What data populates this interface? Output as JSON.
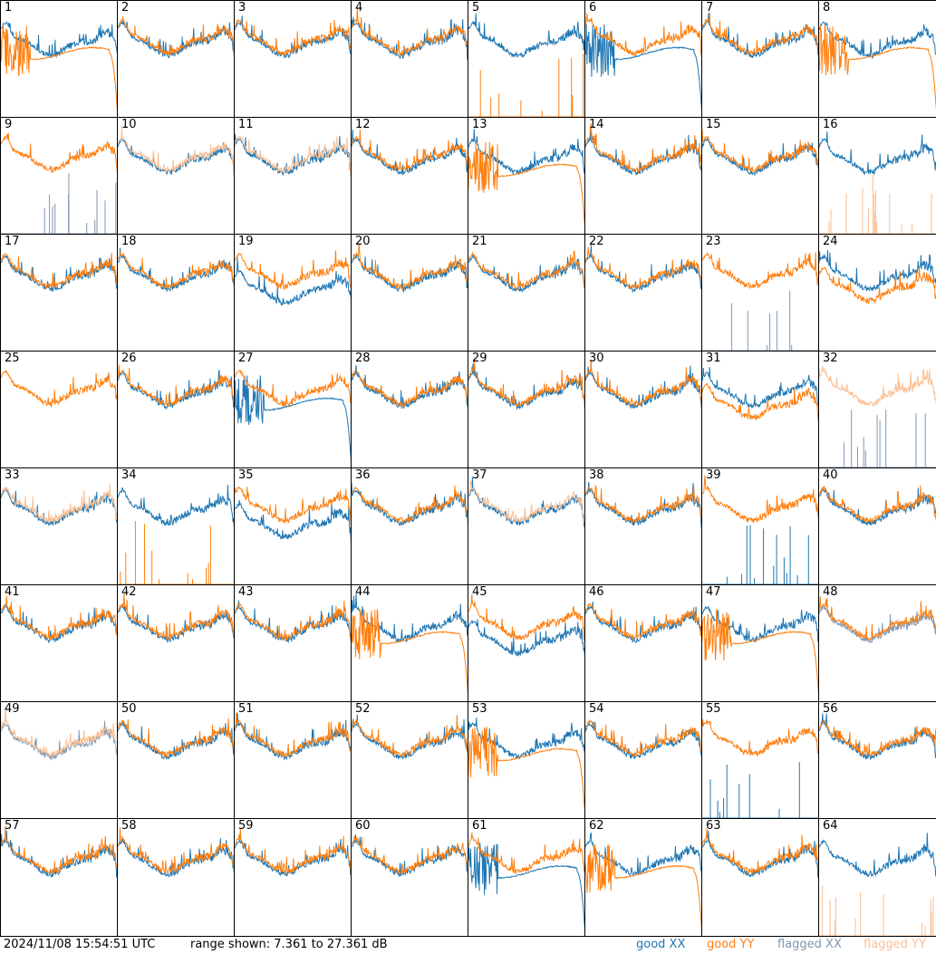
{
  "footer": {
    "timestamp": "2024/11/08 15:54:51 UTC",
    "range": "range shown: 7.361 to 27.361 dB"
  },
  "legend": [
    {
      "id": "good-xx",
      "label_a": "good ",
      "label_b": "XX",
      "color": "#1f77b4"
    },
    {
      "id": "good-yy",
      "label_a": "good ",
      "label_b": "YY",
      "color": "#ff7f0e"
    },
    {
      "id": "flagged-xx",
      "label_a": "flagged ",
      "label_b": "XX",
      "color": "#7f98b2"
    },
    {
      "id": "flagged-yy",
      "label_a": "flagged ",
      "label_b": "YY",
      "color": "#f9bf93"
    }
  ],
  "colors": {
    "good_xx": "#1f77b4",
    "good_yy": "#ff7f0e",
    "flagged_xx": "#7f98b2",
    "flagged_yy": "#f9bf93"
  },
  "chart_data": {
    "type": "line",
    "units": "dB",
    "ylim": [
      7.361,
      27.361
    ],
    "grid": false,
    "layout": "8x8 small multiples",
    "series_names": [
      "good XX",
      "good YY",
      "flagged XX",
      "flagged YY"
    ],
    "panels": [
      {
        "label": "1",
        "xx": "normal",
        "yy": "plateau",
        "yy_state": "good",
        "xx_state": "good"
      },
      {
        "label": "2",
        "xx": "normal",
        "yy": "normal"
      },
      {
        "label": "3",
        "xx": "normal",
        "yy": "normal"
      },
      {
        "label": "4",
        "xx": "normal",
        "yy": "normal"
      },
      {
        "label": "5",
        "xx": "normal",
        "yy": "spikes"
      },
      {
        "label": "6",
        "xx": "plateau",
        "yy": "normal"
      },
      {
        "label": "7",
        "xx": "normal",
        "yy": "normal"
      },
      {
        "label": "8",
        "xx": "normal",
        "yy": "plateau"
      },
      {
        "label": "9",
        "xx": "spikes",
        "yy": "normal",
        "xx_state": "flagged"
      },
      {
        "label": "10",
        "xx": "normal",
        "yy": "normal",
        "yy_state": "flagged"
      },
      {
        "label": "11",
        "xx": "normal",
        "yy": "normal",
        "yy_state": "flagged"
      },
      {
        "label": "12",
        "xx": "normal",
        "yy": "normal"
      },
      {
        "label": "13",
        "xx": "normal",
        "yy": "plateau"
      },
      {
        "label": "14",
        "xx": "normal",
        "yy": "normal"
      },
      {
        "label": "15",
        "xx": "normal",
        "yy": "normal"
      },
      {
        "label": "16",
        "xx": "normal",
        "yy": "spikes",
        "yy_state": "flagged"
      },
      {
        "label": "17",
        "xx": "normal",
        "yy": "normal"
      },
      {
        "label": "18",
        "xx": "normal",
        "yy": "normal"
      },
      {
        "label": "19",
        "xx": "low",
        "yy": "normal"
      },
      {
        "label": "20",
        "xx": "normal",
        "yy": "normal"
      },
      {
        "label": "21",
        "xx": "normal",
        "yy": "normal"
      },
      {
        "label": "22",
        "xx": "normal",
        "yy": "normal"
      },
      {
        "label": "23",
        "xx": "spikes",
        "yy": "normal",
        "xx_state": "flagged"
      },
      {
        "label": "24",
        "xx": "normal",
        "yy": "low"
      },
      {
        "label": "25",
        "xx": "none",
        "yy": "normal"
      },
      {
        "label": "26",
        "xx": "normal",
        "yy": "normal"
      },
      {
        "label": "27",
        "xx": "plateau",
        "yy": "normal"
      },
      {
        "label": "28",
        "xx": "normal",
        "yy": "normal"
      },
      {
        "label": "29",
        "xx": "normal",
        "yy": "normal"
      },
      {
        "label": "30",
        "xx": "normal",
        "yy": "normal"
      },
      {
        "label": "31",
        "xx": "normal",
        "yy": "low"
      },
      {
        "label": "32",
        "xx": "spikes",
        "yy": "normal",
        "yy_state": "flagged",
        "xx_state": "flagged"
      },
      {
        "label": "33",
        "xx": "normal",
        "yy": "normal",
        "yy_state": "flagged"
      },
      {
        "label": "34",
        "xx": "normal",
        "yy": "spikes"
      },
      {
        "label": "35",
        "xx": "low",
        "yy": "normal"
      },
      {
        "label": "36",
        "xx": "normal",
        "yy": "normal"
      },
      {
        "label": "37",
        "xx": "normal",
        "yy": "normal",
        "yy_state": "flagged"
      },
      {
        "label": "38",
        "xx": "normal",
        "yy": "normal"
      },
      {
        "label": "39",
        "xx": "spikes",
        "yy": "normal"
      },
      {
        "label": "40",
        "xx": "normal",
        "yy": "normal"
      },
      {
        "label": "41",
        "xx": "normal",
        "yy": "normal"
      },
      {
        "label": "42",
        "xx": "normal",
        "yy": "normal"
      },
      {
        "label": "43",
        "xx": "normal",
        "yy": "normal"
      },
      {
        "label": "44",
        "xx": "normal",
        "yy": "plateau"
      },
      {
        "label": "45",
        "xx": "low",
        "yy": "normal"
      },
      {
        "label": "46",
        "xx": "normal",
        "yy": "normal"
      },
      {
        "label": "47",
        "xx": "normal",
        "yy": "plateau"
      },
      {
        "label": "48",
        "xx": "normal",
        "yy": "normal",
        "xx_state": "flagged"
      },
      {
        "label": "49",
        "xx": "normal",
        "yy": "normal",
        "xx_state": "flagged",
        "yy_state": "flagged"
      },
      {
        "label": "50",
        "xx": "normal",
        "yy": "normal"
      },
      {
        "label": "51",
        "xx": "normal",
        "yy": "normal"
      },
      {
        "label": "52",
        "xx": "normal",
        "yy": "normal"
      },
      {
        "label": "53",
        "xx": "normal",
        "yy": "plateau"
      },
      {
        "label": "54",
        "xx": "normal",
        "yy": "normal"
      },
      {
        "label": "55",
        "xx": "spikes",
        "yy": "normal"
      },
      {
        "label": "56",
        "xx": "normal",
        "yy": "normal"
      },
      {
        "label": "57",
        "xx": "normal",
        "yy": "normal"
      },
      {
        "label": "58",
        "xx": "normal",
        "yy": "normal"
      },
      {
        "label": "59",
        "xx": "normal",
        "yy": "normal"
      },
      {
        "label": "60",
        "xx": "normal",
        "yy": "normal"
      },
      {
        "label": "61",
        "xx": "plateau",
        "yy": "normal"
      },
      {
        "label": "62",
        "xx": "normal",
        "yy": "plateau"
      },
      {
        "label": "63",
        "xx": "normal",
        "yy": "normal"
      },
      {
        "label": "64",
        "xx": "normal",
        "yy": "spikes",
        "yy_state": "flagged"
      }
    ]
  }
}
